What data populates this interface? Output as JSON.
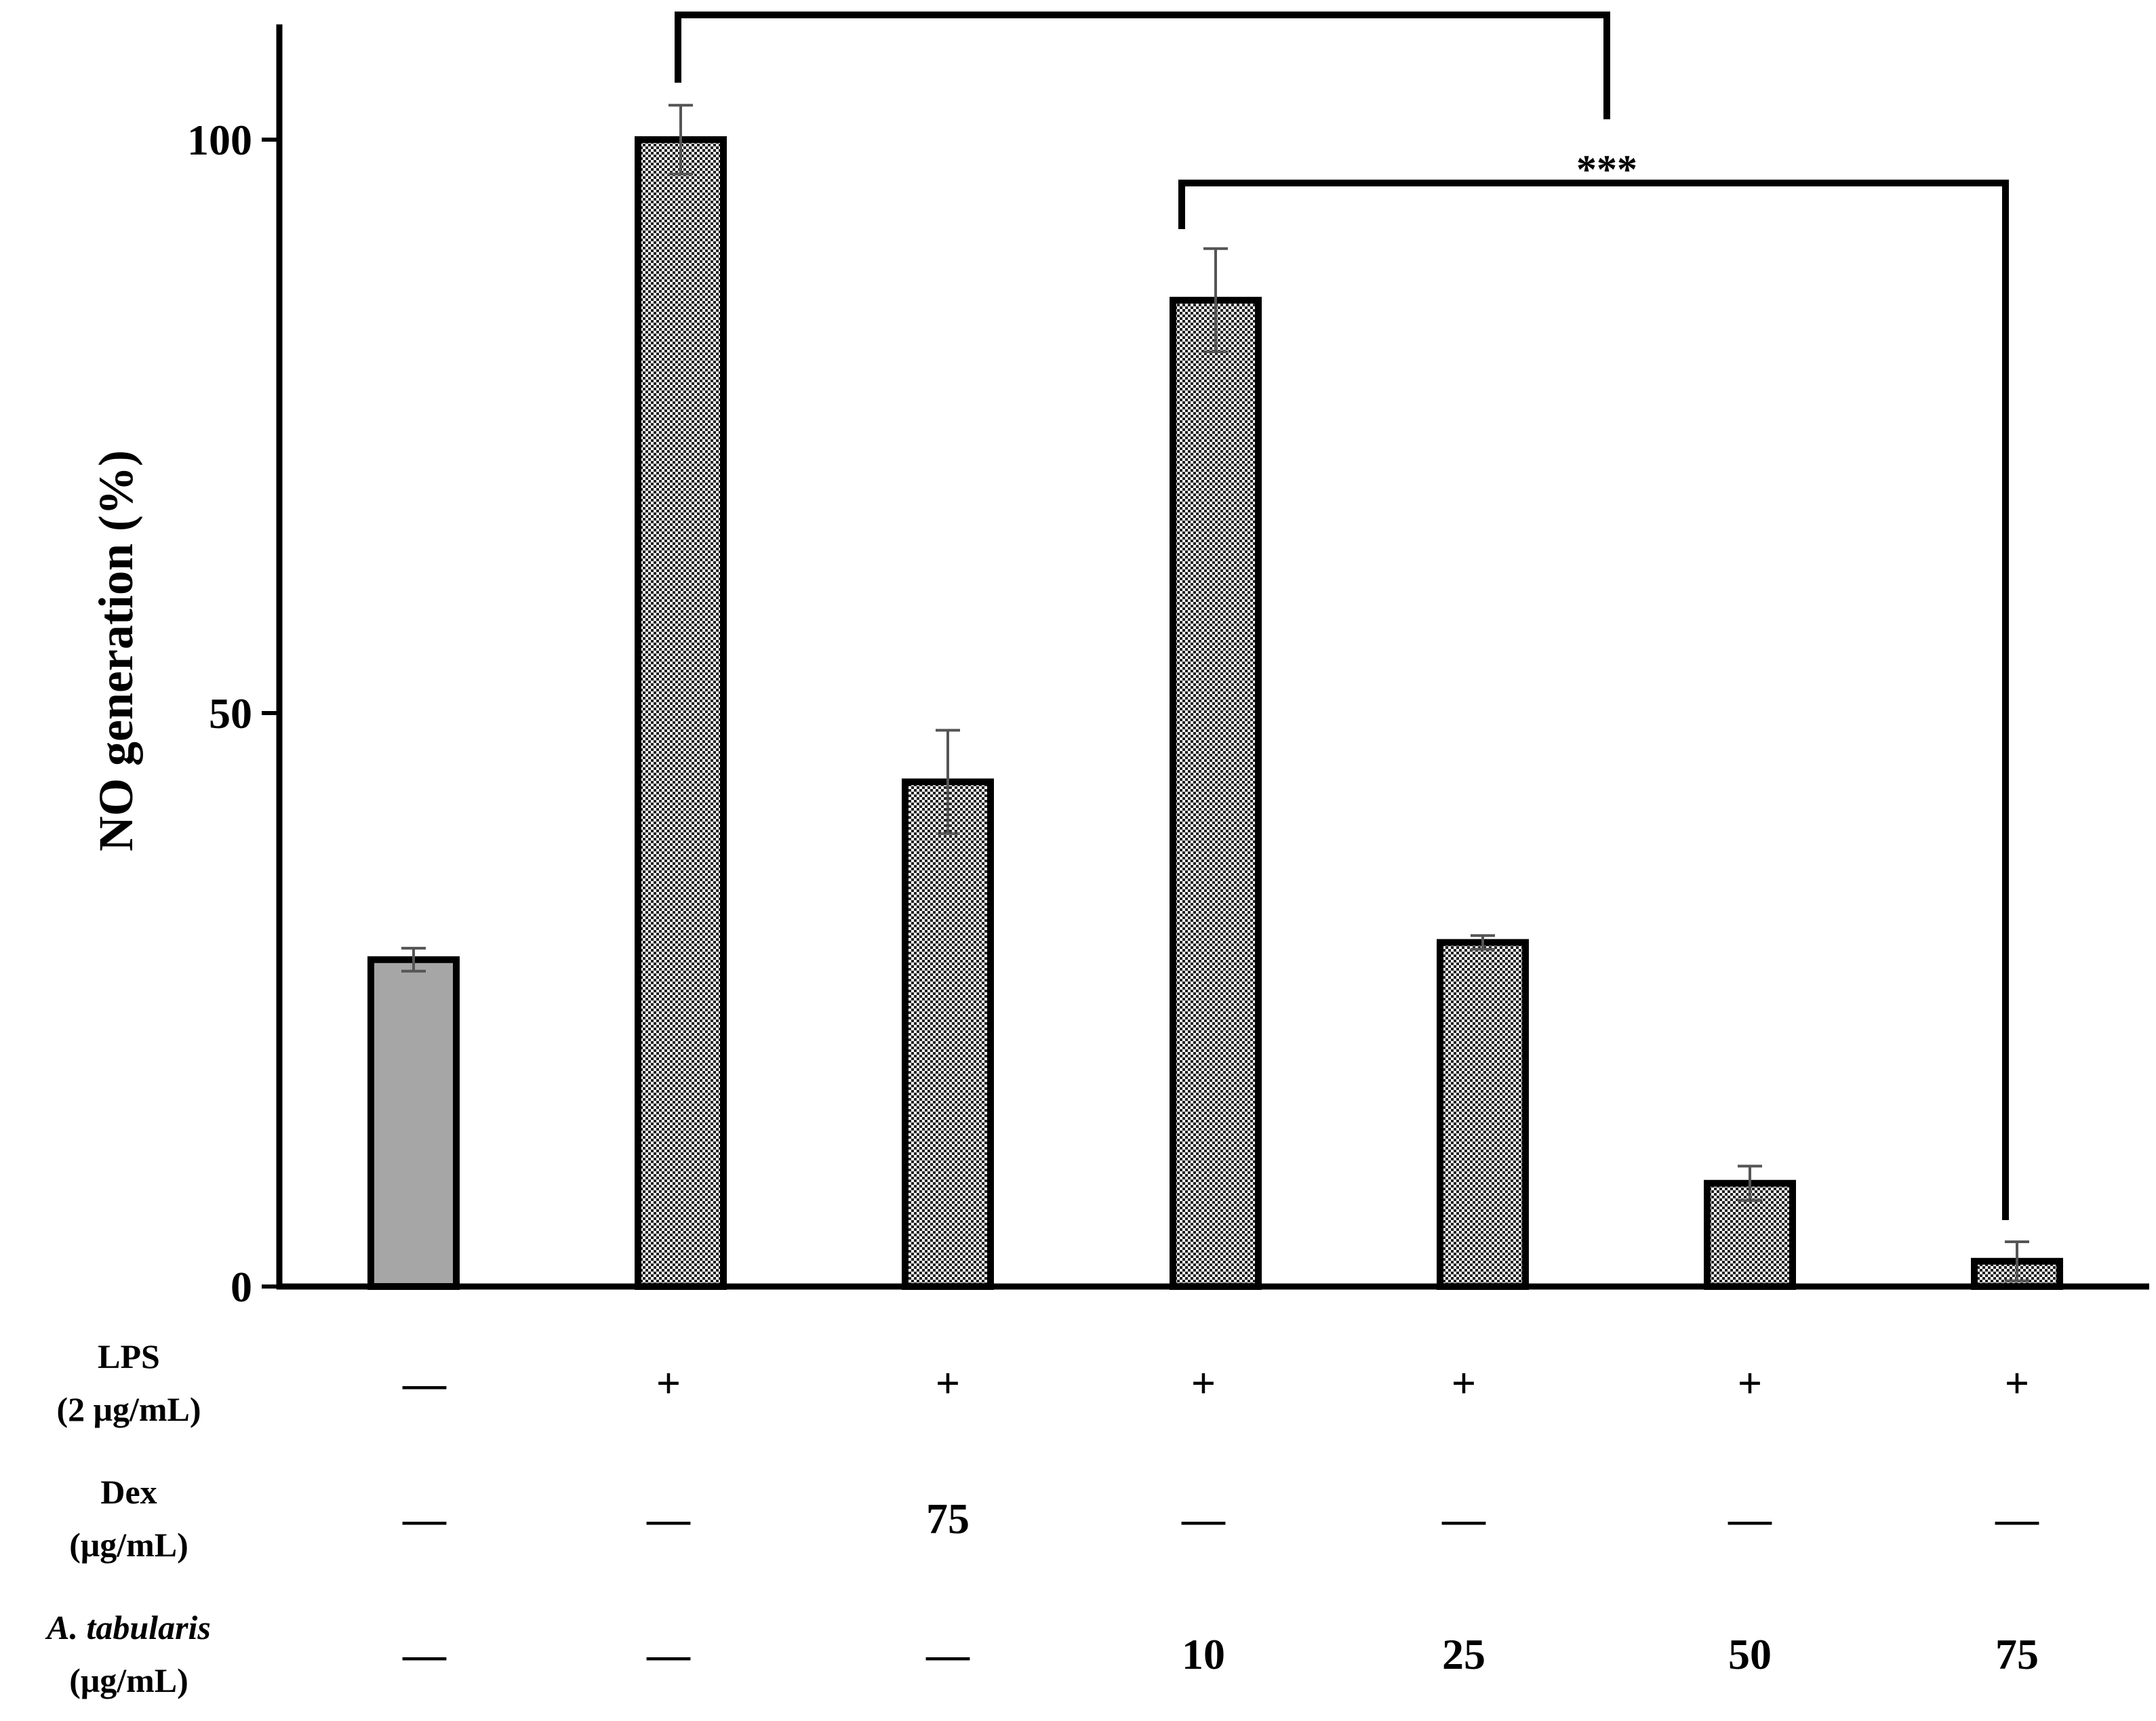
{
  "chart_data": {
    "type": "bar",
    "ylabel": "NO generation (%)",
    "ylim": [
      0,
      110
    ],
    "yticks": [
      "0",
      "50",
      "100"
    ],
    "values": [
      28.5,
      100,
      44,
      86,
      30,
      9,
      2.2
    ],
    "errors": [
      1,
      3,
      4.5,
      4.5,
      0.6,
      1.5,
      1.7
    ],
    "fills": [
      "solid-gray",
      "checkered",
      "checkered",
      "checkered",
      "checkered",
      "checkered",
      "checkered"
    ],
    "colors": {
      "solid": "#a6a6a6",
      "check_dark": "#222222",
      "check_light": "#ffffff",
      "outline": "#000000",
      "errorbar": "#555555"
    },
    "significance": "***",
    "table": {
      "rows": [
        {
          "label": [
            "LPS",
            "(2 μg/mL)"
          ],
          "italic": false,
          "cells": [
            "—",
            "+",
            "+",
            "+",
            "+",
            "+",
            "+"
          ]
        },
        {
          "label": [
            "Dex",
            "(μg/mL)"
          ],
          "italic": false,
          "cells": [
            "—",
            "—",
            "75",
            "—",
            "—",
            "—",
            "—"
          ]
        },
        {
          "label": [
            "A. tabularis",
            "(μg/mL)"
          ],
          "italic": true,
          "cells": [
            "—",
            "—",
            "—",
            "10",
            "25",
            "50",
            "75"
          ]
        }
      ]
    }
  }
}
